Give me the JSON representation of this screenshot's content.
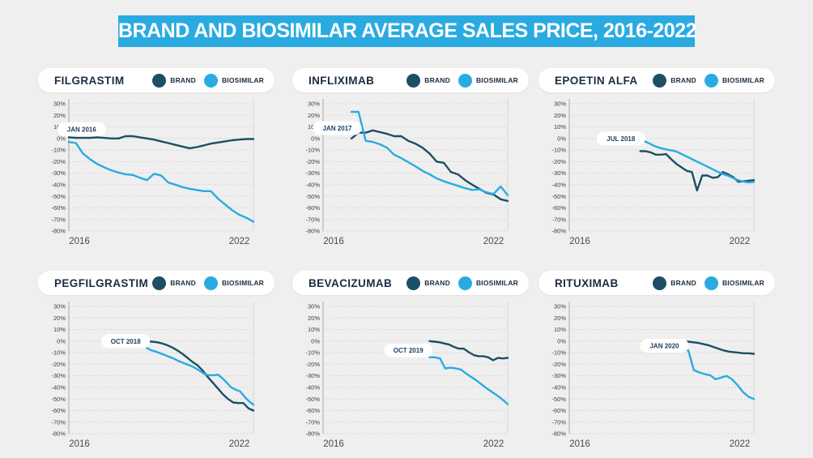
{
  "header": {
    "title": "BRAND AND BIOSIMILAR AVERAGE SALES PRICE, 2016-2022"
  },
  "legend": {
    "brand_label": "BRAND",
    "biosimilar_label": "BIOSIMILAR"
  },
  "colors": {
    "banner_bg": "#29abe2",
    "brand": "#1c4f66",
    "biosimilar": "#29abe2",
    "background": "#efefef"
  },
  "axis": {
    "y_ticks": [
      "30%",
      "20%",
      "10%",
      "0%",
      "-10%",
      "-20%",
      "-30%",
      "-40%",
      "-50%",
      "-60%",
      "-70%",
      "-80%"
    ],
    "y_max": 30,
    "y_min": -80,
    "x_min": 2016,
    "x_max": 2022.5,
    "x_start_label": "2016",
    "x_end_label": "2022",
    "x_end_label_year": 2022,
    "grid": "dotted-horizontal"
  },
  "chart_data": [
    {
      "type": "line",
      "title": "FILGRASTIM",
      "annotation": {
        "label": "JAN 2016",
        "year": 2016.45,
        "value": 8
      },
      "ylim": [
        -80,
        30
      ],
      "series": [
        {
          "name": "BRAND",
          "key": "brand",
          "x0": 2016.0,
          "values": [
            1,
            0.5,
            0.5,
            0.5,
            1,
            0.5,
            0,
            0,
            2,
            2,
            1,
            0,
            -1,
            -2.5,
            -4,
            -5.5,
            -7,
            -8.5,
            -7.5,
            -6,
            -4.5,
            -3.5,
            -2.5,
            -1.5,
            -1,
            -0.5,
            -0.5
          ]
        },
        {
          "name": "BIOSIMILAR",
          "key": "biosimilar",
          "x0": 2016.0,
          "values": [
            -3,
            -4,
            -13,
            -18,
            -22,
            -25,
            -27.5,
            -29.5,
            -31,
            -31.5,
            -34,
            -36,
            -30.5,
            -32,
            -38,
            -40,
            -42,
            -43.5,
            -44.5,
            -45.5,
            -45.5,
            -52,
            -57,
            -62,
            -66,
            -68.5,
            -72
          ]
        }
      ]
    },
    {
      "type": "line",
      "title": "INFLIXIMAB",
      "annotation": {
        "label": "JAN 2017",
        "year": 2016.5,
        "value": 9
      },
      "ylim": [
        -80,
        30
      ],
      "series": [
        {
          "name": "BRAND",
          "key": "brand",
          "x0": 2017.0,
          "values": [
            0,
            5,
            5,
            7,
            5.5,
            4,
            2,
            2,
            -2,
            -4.5,
            -8,
            -13,
            -20,
            -21,
            -29,
            -31,
            -36,
            -40,
            -43.5,
            -47,
            -48.5,
            -52.5,
            -54
          ]
        },
        {
          "name": "BIOSIMILAR",
          "key": "biosimilar",
          "x0": 2017.0,
          "values": [
            23,
            23,
            -2,
            -3,
            -5,
            -8,
            -14,
            -17,
            -20.5,
            -24,
            -28,
            -31,
            -34.5,
            -37,
            -39,
            -41,
            -43,
            -44.5,
            -44,
            -46.5,
            -48,
            -41.5,
            -49
          ]
        }
      ]
    },
    {
      "type": "line",
      "title": "EPOETIN ALFA",
      "annotation": {
        "label": "JUL 2018",
        "year": 2017.82,
        "value": 0
      },
      "ylim": [
        -80,
        30
      ],
      "series": [
        {
          "name": "BRAND",
          "key": "brand",
          "x0": 2018.5,
          "values": [
            -11,
            -11,
            -12,
            -14,
            -14,
            -13.5,
            -18,
            -22,
            -25,
            -28,
            -29,
            -45,
            -32,
            -32,
            -34,
            -33.5,
            -29,
            -31,
            -33.5,
            -37.5,
            -37,
            -36.5,
            -36
          ]
        },
        {
          "name": "BIOSIMILAR",
          "key": "biosimilar",
          "x0": 2018.5,
          "values": [
            0,
            -2.5,
            -4.5,
            -6.5,
            -8,
            -9,
            -10,
            -10.5,
            -12,
            -14,
            -16,
            -18,
            -20,
            -22,
            -24,
            -26,
            -28,
            -30,
            -31.5,
            -33,
            -35,
            -36.5,
            -37.5,
            -38,
            -37.5
          ]
        }
      ]
    },
    {
      "type": "line",
      "title": "PEGFILGRASTIM",
      "annotation": {
        "label": "OCT 2018",
        "year": 2018.0,
        "value": 0
      },
      "ylim": [
        -80,
        30
      ],
      "series": [
        {
          "name": "BRAND",
          "key": "brand",
          "x0": 2018.75,
          "values": [
            0,
            -0.5,
            -1,
            -2,
            -3.5,
            -5.5,
            -8,
            -11,
            -14.5,
            -18,
            -21,
            -25.5,
            -31,
            -36,
            -41,
            -46,
            -50,
            -53,
            -53.5,
            -53.5,
            -58,
            -60
          ]
        },
        {
          "name": "BIOSIMILAR",
          "key": "biosimilar",
          "x0": 2018.75,
          "values": [
            -6,
            -8,
            -9,
            -10.5,
            -12,
            -13.5,
            -15,
            -17,
            -18.5,
            -20,
            -21.5,
            -23.5,
            -26,
            -28.5,
            -29.5,
            -29.5,
            -29,
            -32,
            -36,
            -40,
            -42,
            -43.5,
            -48,
            -52,
            -55
          ]
        }
      ]
    },
    {
      "type": "line",
      "title": "BEVACIZUMAB",
      "annotation": {
        "label": "OCT 2019",
        "year": 2019.0,
        "value": -8
      },
      "ylim": [
        -80,
        30
      ],
      "series": [
        {
          "name": "BRAND",
          "key": "brand",
          "x0": 2019.75,
          "values": [
            0,
            -0.5,
            -1,
            -2,
            -3,
            -5,
            -6.5,
            -6.5,
            -9.5,
            -12,
            -13,
            -13,
            -14,
            -16.5,
            -14.5,
            -15,
            -14.5
          ]
        },
        {
          "name": "BIOSIMILAR",
          "key": "biosimilar",
          "x0": 2019.75,
          "values": [
            -14,
            -14,
            -15,
            -23.5,
            -23,
            -23.5,
            -24.5,
            -28,
            -31,
            -34,
            -37.5,
            -41,
            -44,
            -47,
            -50.5,
            -54.5
          ]
        }
      ]
    },
    {
      "type": "line",
      "title": "RITUXIMAB",
      "annotation": {
        "label": "JAN 2020",
        "year": 2019.35,
        "value": -4
      },
      "ylim": [
        -80,
        30
      ],
      "series": [
        {
          "name": "BRAND",
          "key": "brand",
          "x0": 2020.0,
          "values": [
            -0.5,
            -0.5,
            -1,
            -1.5,
            -2.5,
            -3.5,
            -5,
            -6.5,
            -8,
            -9,
            -9.5,
            -10,
            -10.5,
            -10.5,
            -11
          ]
        },
        {
          "name": "BIOSIMILAR",
          "key": "biosimilar",
          "x0": 2020.0,
          "values": [
            -7.5,
            -8,
            -25,
            -27,
            -28.5,
            -29.5,
            -33,
            -31.5,
            -30,
            -33,
            -38,
            -44,
            -48,
            -50
          ]
        }
      ]
    }
  ]
}
